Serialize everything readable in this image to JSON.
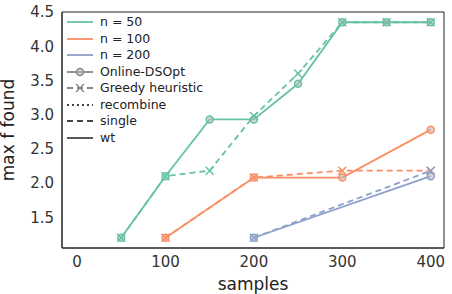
{
  "chart_data": {
    "type": "line",
    "x_label": "samples",
    "y_label": "max f found",
    "xlim": [
      -17,
      415
    ],
    "xticks": [
      0,
      100,
      200,
      300,
      400
    ],
    "ylim": [
      1.05,
      4.5
    ],
    "yticks": [
      1.5,
      {
        "value": 2,
        "label": "2.0"
      },
      2.5,
      {
        "value": 3,
        "label": "3.0"
      },
      3.5,
      {
        "value": 4,
        "label": "4.0"
      },
      4.5
    ],
    "grid": false,
    "legend": "upper left",
    "series": [
      {
        "name": "n = 50",
        "method": "Online-DSOpt",
        "color": "#66c2a5",
        "line_style": "solid",
        "marker": "circle",
        "x": [
          50,
          100,
          150,
          200,
          250,
          300,
          350,
          400
        ],
        "values": [
          1.2,
          2.1,
          2.93,
          2.93,
          3.45,
          4.35,
          4.35,
          4.35
        ]
      },
      {
        "name": "n = 50",
        "method": "Greedy heuristic",
        "color": "#66c2a5",
        "line_style": "dashed",
        "marker": "x",
        "x": [
          50,
          100,
          150,
          200,
          250,
          300,
          350,
          400
        ],
        "values": [
          1.2,
          2.1,
          2.18,
          2.98,
          3.6,
          4.35,
          4.35,
          4.35
        ]
      },
      {
        "name": "n = 100",
        "method": "Online-DSOpt",
        "color": "#fc8d62",
        "line_style": "solid",
        "marker": "circle",
        "x": [
          100,
          200,
          300,
          400
        ],
        "values": [
          1.2,
          2.08,
          2.08,
          2.78
        ]
      },
      {
        "name": "n = 100",
        "method": "Greedy heuristic",
        "color": "#fc8d62",
        "line_style": "dashed",
        "marker": "x",
        "x": [
          100,
          200,
          300,
          400
        ],
        "values": [
          1.2,
          2.08,
          2.18,
          2.18
        ]
      },
      {
        "name": "n = 200",
        "method": "Online-DSOpt",
        "color": "#8da0cb",
        "line_style": "solid",
        "marker": "circle",
        "x": [
          200,
          400
        ],
        "values": [
          1.2,
          2.1
        ]
      },
      {
        "name": "n = 200",
        "method": "Greedy heuristic",
        "color": "#8da0cb",
        "line_style": "dashed",
        "marker": "x",
        "x": [
          200,
          400
        ],
        "values": [
          1.2,
          2.18
        ]
      }
    ],
    "legend_entries": [
      {
        "label": "n = 50",
        "color": "#66c2a5",
        "line_style": "solid"
      },
      {
        "label": "n = 100",
        "color": "#fc8d62",
        "line_style": "solid"
      },
      {
        "label": "n = 200",
        "color": "#8da0cb",
        "line_style": "solid"
      },
      {
        "label": "Online-DSOpt",
        "color": "#888888",
        "line_style": "solid",
        "marker": "circle"
      },
      {
        "label": "Greedy heuristic",
        "color": "#888888",
        "line_style": "dashed",
        "marker": "x"
      },
      {
        "label": "recombine",
        "color": "#444444",
        "line_style": "dotted"
      },
      {
        "label": "single",
        "color": "#444444",
        "line_style": "dashed"
      },
      {
        "label": "wt",
        "color": "#444444",
        "line_style": "solid"
      }
    ]
  }
}
